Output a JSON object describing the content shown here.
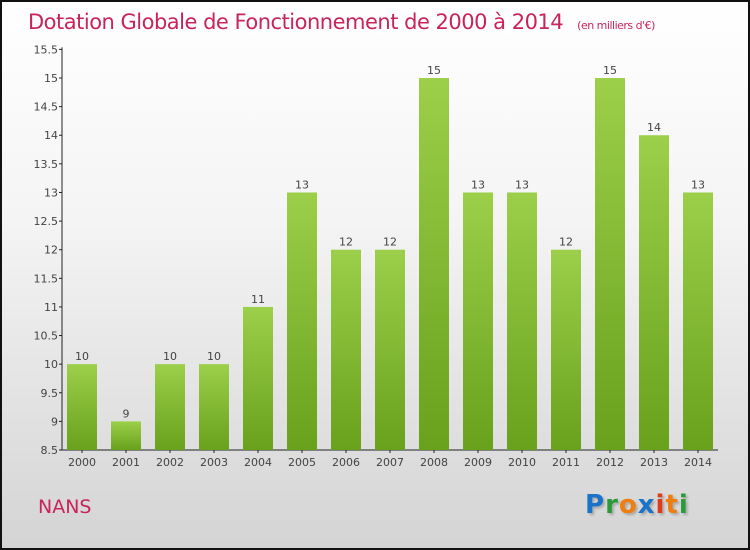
{
  "chart_data": {
    "type": "bar",
    "title": "Dotation Globale de Fonctionnement de 2000 à 2014",
    "subtitle": "(en milliers d'€)",
    "xlabel": "",
    "ylabel": "",
    "categories": [
      "2000",
      "2001",
      "2002",
      "2003",
      "2004",
      "2005",
      "2006",
      "2007",
      "2008",
      "2009",
      "2010",
      "2011",
      "2012",
      "2013",
      "2014"
    ],
    "values": [
      10,
      9,
      10,
      10,
      11,
      13,
      12,
      12,
      15,
      13,
      13,
      12,
      15,
      14,
      13
    ],
    "ylim": [
      8.5,
      15.5
    ],
    "yticks": [
      "8.5",
      "9",
      "9.5",
      "10",
      "10.5",
      "11",
      "11.5",
      "12",
      "12.5",
      "13",
      "13.5",
      "14",
      "14.5",
      "15",
      "15.5"
    ],
    "grid": false,
    "bar_color_top": "#9ccf4a",
    "bar_color_bottom": "#68a11c"
  },
  "commune": "NANS",
  "logo": {
    "letters": [
      "P",
      "r",
      "o",
      "x",
      "i",
      "t",
      "i"
    ],
    "colors": [
      "#1a73c9",
      "#2a9a3a",
      "#f07d10",
      "#1a73c9",
      "#e03a1a",
      "#f07d10",
      "#2a9a3a"
    ]
  }
}
